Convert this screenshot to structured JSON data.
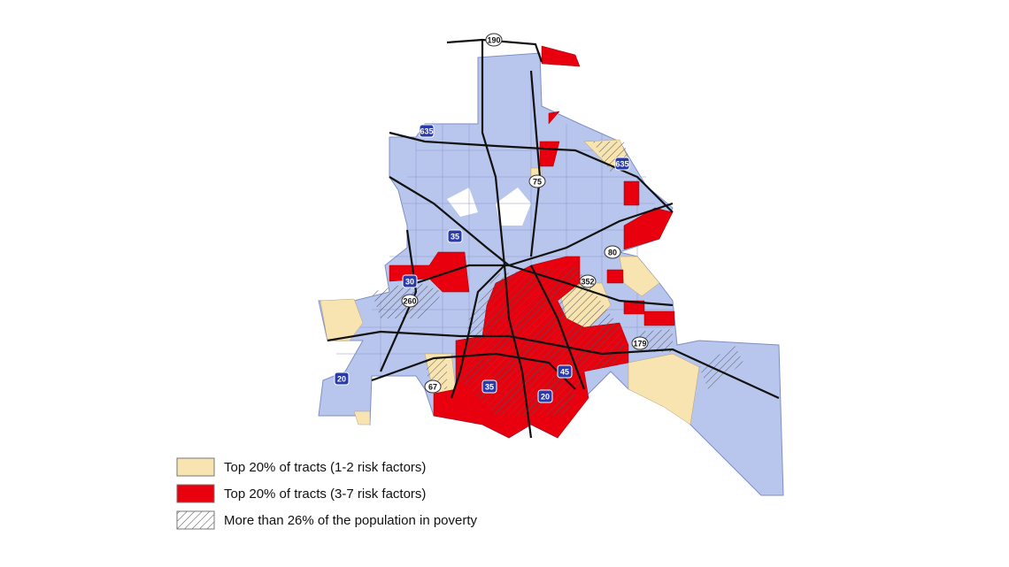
{
  "highway_shields": [
    "190",
    "635",
    "635",
    "75",
    "35",
    "80",
    "30",
    "352",
    "260",
    "179",
    "45",
    "20",
    "35",
    "67",
    "20"
  ],
  "legend": [
    {
      "label": "Top 20% of tracts (1-2 risk factors)"
    },
    {
      "label": "Top 20% of tracts (3-7 risk factors)"
    },
    {
      "label": "More than 26% of the population in poverty"
    }
  ]
}
